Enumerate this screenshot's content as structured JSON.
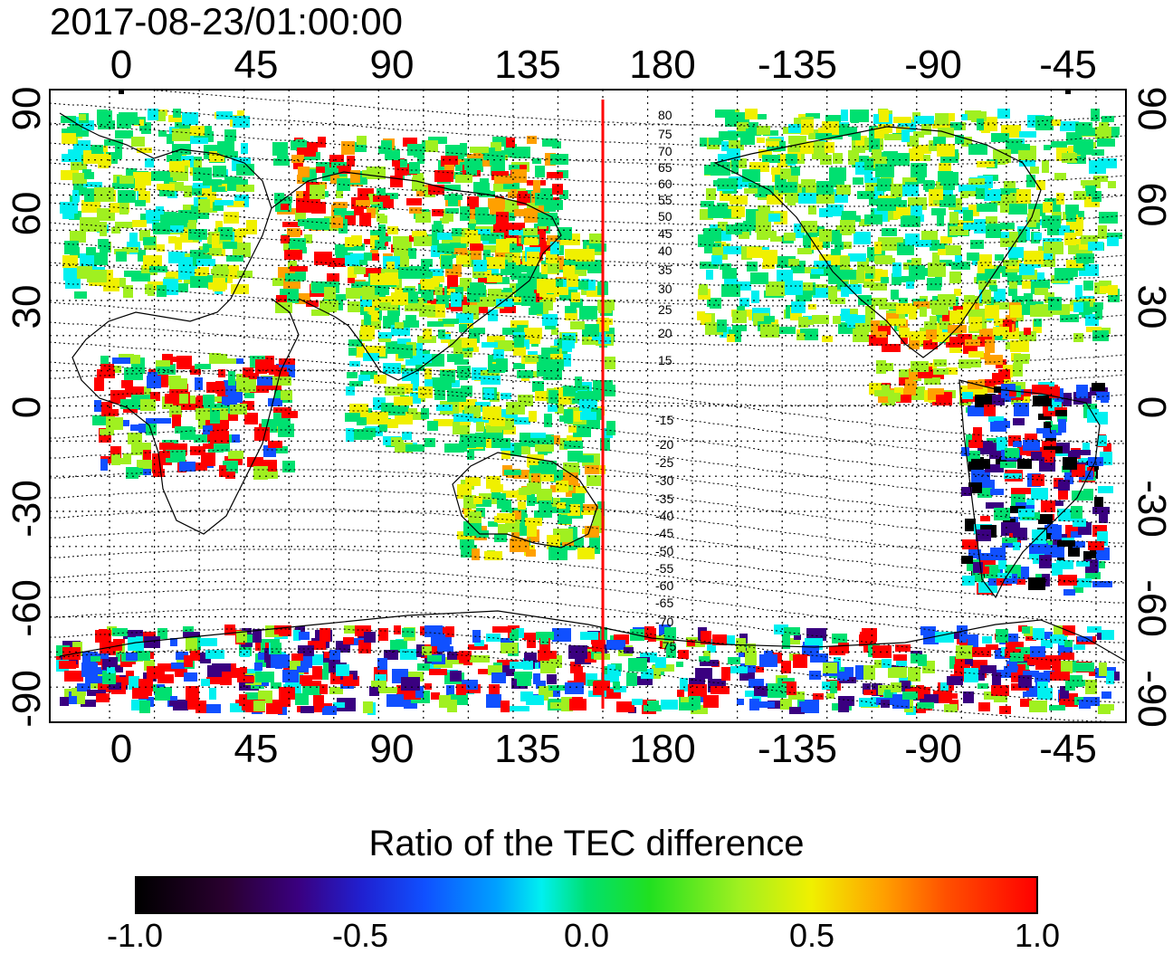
{
  "map": {
    "timestamp": "2017-08-23/01:00:00",
    "top_ticks": [
      "0",
      "45",
      "90",
      "135",
      "180",
      "-135",
      "-90",
      "-45"
    ],
    "bottom_ticks": [
      "0",
      "45",
      "90",
      "135",
      "180",
      "-135",
      "-90",
      "-45"
    ],
    "left_ticks": [
      "90",
      "60",
      "30",
      "0",
      "-30",
      "-60",
      "-90"
    ],
    "right_ticks": [
      "90",
      "60",
      "30",
      "0",
      "-30",
      "-60",
      "-90"
    ],
    "mlat_labels": [
      "80",
      "75",
      "70",
      "65",
      "60",
      "55",
      "50",
      "45",
      "40",
      "35",
      "30",
      "25",
      "20",
      "15",
      "-15",
      "-20",
      "-25",
      "-30",
      "-35",
      "-40",
      "-45",
      "-50",
      "-55",
      "-60",
      "-65",
      "-70",
      "-75"
    ],
    "reference_line_lon": 165,
    "reference_line_color": "#ff0000",
    "lon_axis": {
      "start": -20,
      "end": 340,
      "grid_step": 15
    },
    "lat_axis": {
      "min": -90,
      "max": 90,
      "grid_step": 10
    }
  },
  "colorbar": {
    "title": "Ratio of the TEC difference",
    "tick_labels": [
      "-1.0",
      "-0.5",
      "0.0",
      "0.5",
      "1.0"
    ],
    "range": [
      -1.0,
      1.0
    ],
    "colors": [
      "#000000",
      "#3a0080",
      "#1050ff",
      "#00f0f0",
      "#00e070",
      "#a0f020",
      "#f0f000",
      "#ffa000",
      "#ff0000"
    ]
  }
}
